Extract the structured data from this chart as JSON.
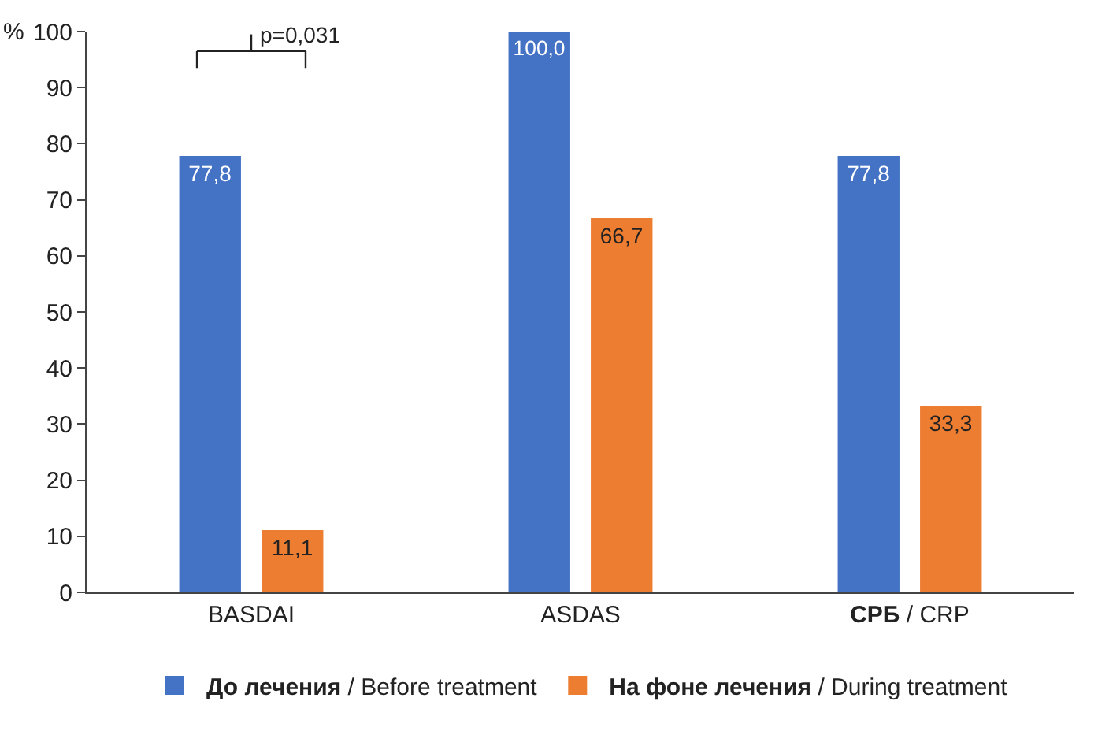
{
  "chart_data": {
    "type": "bar",
    "ylabel": "%",
    "categories": [
      "BASDAI",
      "ASDAS",
      "СРБ / CRP"
    ],
    "series": [
      {
        "name": "До лечения / Before treatment",
        "color": "#4472c4",
        "values": [
          77.8,
          100.0,
          77.8
        ],
        "value_labels": [
          "77,8",
          "100,0",
          "77,8"
        ]
      },
      {
        "name": "На фоне лечения / During treatment",
        "color": "#ed7d31",
        "values": [
          11.1,
          66.7,
          33.3
        ],
        "value_labels": [
          "11,1",
          "66,7",
          "33,3"
        ]
      }
    ],
    "ylim": [
      0,
      100
    ],
    "yticks": [
      0,
      10,
      20,
      30,
      40,
      50,
      60,
      70,
      80,
      90,
      100
    ],
    "grid": false,
    "legend": "bottom",
    "annotations": [
      "p=0,031"
    ]
  }
}
